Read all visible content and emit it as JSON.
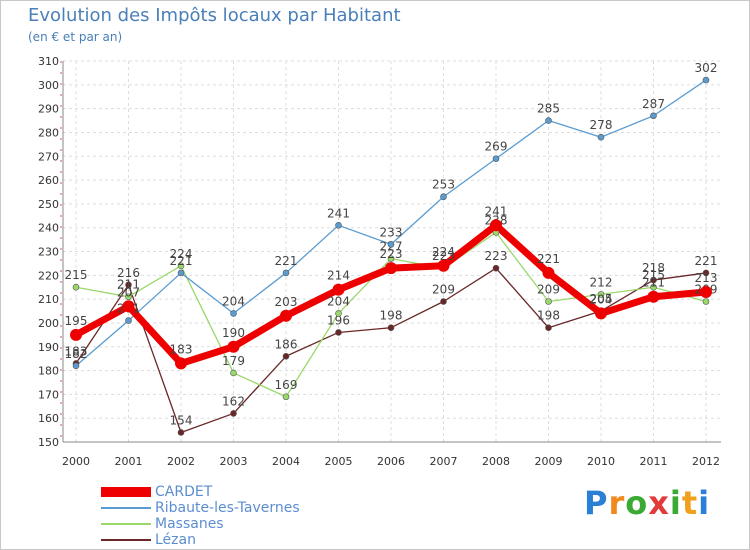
{
  "title": "Evolution des Impôts locaux par Habitant",
  "subtitle": "(en € et par an)",
  "logo_text": "Proxiti",
  "chart_data": {
    "type": "line",
    "title": "Evolution des Impôts locaux par Habitant",
    "ylabel": "(en € et par an)",
    "xlabel": "",
    "categories": [
      "2000",
      "2001",
      "2002",
      "2003",
      "2004",
      "2005",
      "2006",
      "2007",
      "2008",
      "2009",
      "2010",
      "2011",
      "2012"
    ],
    "ylim": [
      150,
      310
    ],
    "yticks": [
      150,
      160,
      170,
      180,
      190,
      200,
      210,
      220,
      230,
      240,
      250,
      260,
      270,
      280,
      290,
      300,
      310
    ],
    "series": [
      {
        "name": "CARDET",
        "color": "#ee0000",
        "values": [
          195,
          207,
          183,
          190,
          203,
          214,
          223,
          224,
          241,
          221,
          204,
          211,
          213
        ]
      },
      {
        "name": "Ribaute-les-Tavernes",
        "color": "#5a9bd0",
        "values": [
          182,
          201,
          221,
          204,
          221,
          241,
          233,
          253,
          269,
          285,
          278,
          287,
          302
        ]
      },
      {
        "name": "Massanes",
        "color": "#9ad86a",
        "values": [
          215,
          211,
          224,
          179,
          169,
          204,
          227,
          223,
          238,
          209,
          212,
          215,
          209
        ]
      },
      {
        "name": "Lézan",
        "color": "#6b2727",
        "values": [
          183,
          216,
          154,
          162,
          186,
          196,
          198,
          209,
          223,
          198,
          205,
          218,
          221
        ]
      }
    ],
    "legend_position": "bottom-left"
  }
}
